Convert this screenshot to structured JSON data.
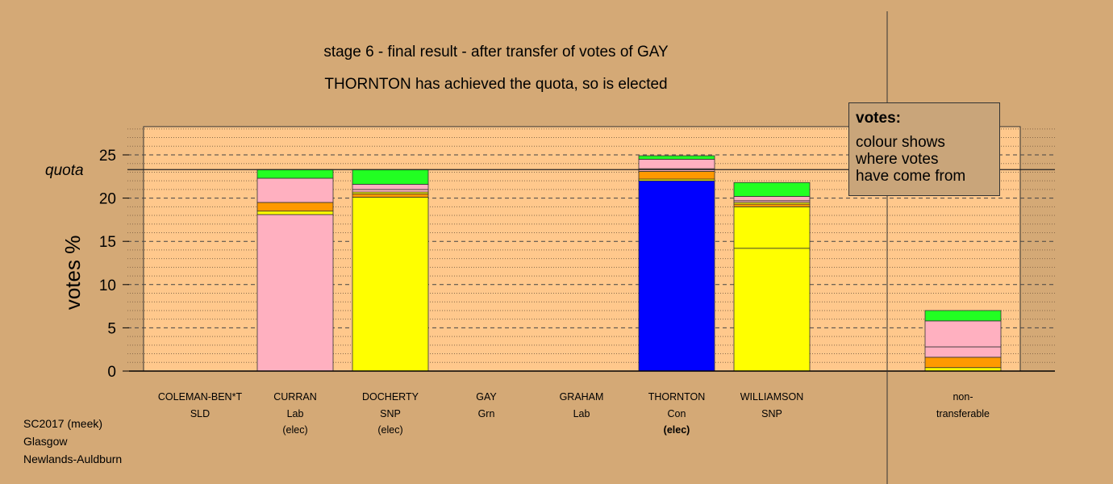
{
  "title": "stage 6 - final result - after transfer of votes of GAY",
  "subtitle": "THORNTON has achieved the quota, so is elected",
  "legend": {
    "title": "votes:",
    "lines": [
      "colour shows",
      "where votes",
      "have come from"
    ]
  },
  "source": [
    "SC2017 (meek)",
    "Glasgow",
    "Newlands-Auldburn"
  ],
  "colors": {
    "background": "#d4a976",
    "plot": "#ffc88c"
  },
  "chart_data": {
    "type": "bar",
    "stacked": true,
    "ylabel": "votes %",
    "ylim": [
      0,
      28
    ],
    "yticks": [
      0,
      5,
      10,
      15,
      20,
      25
    ],
    "quota": 23.3,
    "quota_label": "quota",
    "categories": [
      {
        "name": "COLEMAN-BEN*T",
        "party": "SLD",
        "note": "",
        "bold": false,
        "segments": []
      },
      {
        "name": "CURRAN",
        "party": "Lab",
        "note": "(elec)",
        "bold": false,
        "segments": [
          {
            "value": 18.1,
            "color": "#ffb0c0"
          },
          {
            "value": 0.4,
            "color": "#ffff00"
          },
          {
            "value": 1.0,
            "color": "#ff9900"
          },
          {
            "value": 2.8,
            "color": "#ffb0c0"
          },
          {
            "value": 1.0,
            "color": "#22ff22"
          }
        ]
      },
      {
        "name": "DOCHERTY",
        "party": "SNP",
        "note": "(elec)",
        "bold": false,
        "segments": [
          {
            "value": 20.1,
            "color": "#ffff00"
          },
          {
            "value": 0.4,
            "color": "#ff9900"
          },
          {
            "value": 0.2,
            "color": "#ffff00"
          },
          {
            "value": 0.3,
            "color": "#ffb0c0"
          },
          {
            "value": 0.6,
            "color": "#ffb0c0"
          },
          {
            "value": 1.7,
            "color": "#22ff22"
          }
        ]
      },
      {
        "name": "GAY",
        "party": "Grn",
        "note": "",
        "bold": false,
        "segments": []
      },
      {
        "name": "GRAHAM",
        "party": "Lab",
        "note": "",
        "bold": false,
        "segments": []
      },
      {
        "name": "THORNTON",
        "party": "Con",
        "note": "(elec)",
        "bold": true,
        "segments": [
          {
            "value": 22.0,
            "color": "#0000ff"
          },
          {
            "value": 0.2,
            "color": "#ffff00"
          },
          {
            "value": 0.9,
            "color": "#ff9900"
          },
          {
            "value": 0.3,
            "color": "#ffb0c0"
          },
          {
            "value": 1.1,
            "color": "#ffb0c0"
          },
          {
            "value": 0.4,
            "color": "#22ff22"
          }
        ]
      },
      {
        "name": "WILLIAMSON",
        "party": "SNP",
        "note": "",
        "bold": false,
        "segments": [
          {
            "value": 14.2,
            "color": "#ffff00"
          },
          {
            "value": 4.8,
            "color": "#ffff00"
          },
          {
            "value": 0.3,
            "color": "#ff9900"
          },
          {
            "value": 0.2,
            "color": "#ffff00"
          },
          {
            "value": 0.2,
            "color": "#ffb0c0"
          },
          {
            "value": 0.5,
            "color": "#ffb0c0"
          },
          {
            "value": 1.6,
            "color": "#22ff22"
          }
        ]
      }
    ],
    "nontransferable": {
      "name": "non-",
      "party": "transferable",
      "segments": [
        {
          "value": 0.4,
          "color": "#ffff00"
        },
        {
          "value": 1.2,
          "color": "#ff9900"
        },
        {
          "value": 1.2,
          "color": "#ffb0c0"
        },
        {
          "value": 3.0,
          "color": "#ffb0c0"
        },
        {
          "value": 1.2,
          "color": "#22ff22"
        }
      ]
    }
  }
}
